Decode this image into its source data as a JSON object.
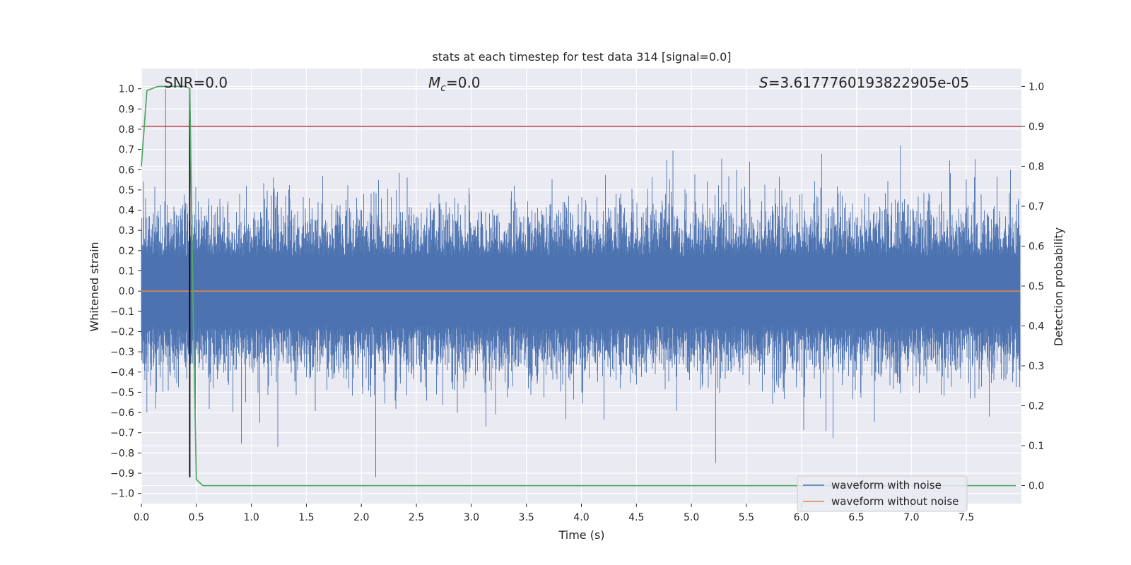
{
  "chart_data": {
    "type": "line",
    "title": "stats at each timestep for test data 314 [signal=0.0]",
    "xlabel": "Time (s)",
    "ylabel": "Whitened strain",
    "ylabel_right": "Detection probability",
    "xlim": [
      0.0,
      8.0
    ],
    "ylim": [
      -1.05,
      1.1
    ],
    "ylim_right": [
      -0.045,
      1.045
    ],
    "xticks": [
      0.0,
      0.5,
      1.0,
      1.5,
      2.0,
      2.5,
      3.0,
      3.5,
      4.0,
      4.5,
      5.0,
      5.5,
      6.0,
      6.5,
      7.0,
      7.5
    ],
    "xtick_labels": [
      "0.0",
      "0.5",
      "1.0",
      "1.5",
      "2.0",
      "2.5",
      "3.0",
      "3.5",
      "4.0",
      "4.5",
      "5.0",
      "5.5",
      "6.0",
      "6.5",
      "7.0",
      "7.5"
    ],
    "yticks": [
      1.0,
      0.9,
      0.8,
      0.7,
      0.6,
      0.5,
      0.4,
      0.3,
      0.2,
      0.1,
      0.0,
      -0.1,
      -0.2,
      -0.3,
      -0.4,
      -0.5,
      -0.6,
      -0.7,
      -0.8,
      -0.9,
      -1.0
    ],
    "ytick_labels": [
      "1.0",
      "0.9",
      "0.8",
      "0.7",
      "0.6",
      "0.5",
      "0.4",
      "0.3",
      "0.2",
      "0.1",
      "0.0",
      "−0.1",
      "−0.2",
      "−0.3",
      "−0.4",
      "−0.5",
      "−0.6",
      "−0.7",
      "−0.8",
      "−0.9",
      "−1.0"
    ],
    "yticks_right": [
      1.0,
      0.9,
      0.8,
      0.7,
      0.6,
      0.5,
      0.4,
      0.3,
      0.2,
      0.1,
      0.0
    ],
    "ytick_labels_right": [
      "1.0",
      "0.9",
      "0.8",
      "0.7",
      "0.6",
      "0.5",
      "0.4",
      "0.3",
      "0.2",
      "0.1",
      "0.0"
    ],
    "grid": true,
    "legend_placement": "lower-right",
    "annotations": {
      "snr": "SNR=0.0",
      "mc_symbol": "M",
      "mc_sub": "c",
      "mc_value": "=0.0",
      "s_symbol": "S",
      "s_value": "=3.6177760193822905e-05"
    },
    "series": [
      {
        "name": "waveform with noise",
        "color": "#4c72b0",
        "axis": "left",
        "kind": "noise",
        "duration": 7.99,
        "envelope_range": [
          -0.92,
          1.0
        ]
      },
      {
        "name": "waveform without noise",
        "color": "#dd8452",
        "axis": "left",
        "kind": "constant",
        "y": 0.0
      }
    ],
    "detection_probability": {
      "color": "#55a868",
      "axis": "right",
      "x": [
        0.0,
        0.05,
        0.1,
        0.15,
        0.2,
        0.3,
        0.4,
        0.44,
        0.47,
        0.5,
        0.56,
        7.95
      ],
      "y": [
        0.8,
        0.99,
        0.995,
        1.0,
        1.0,
        1.0,
        1.0,
        0.995,
        0.45,
        0.015,
        0.0,
        0.0
      ]
    },
    "threshold": {
      "color": "#c44e52",
      "axis": "right",
      "y": 0.9
    },
    "marker_line": {
      "color": "#000000",
      "x": 0.44,
      "y_from": -0.92,
      "y_to": 1.0
    },
    "colors": {
      "background": "#eaeaf2",
      "grid": "#ffffff"
    }
  }
}
